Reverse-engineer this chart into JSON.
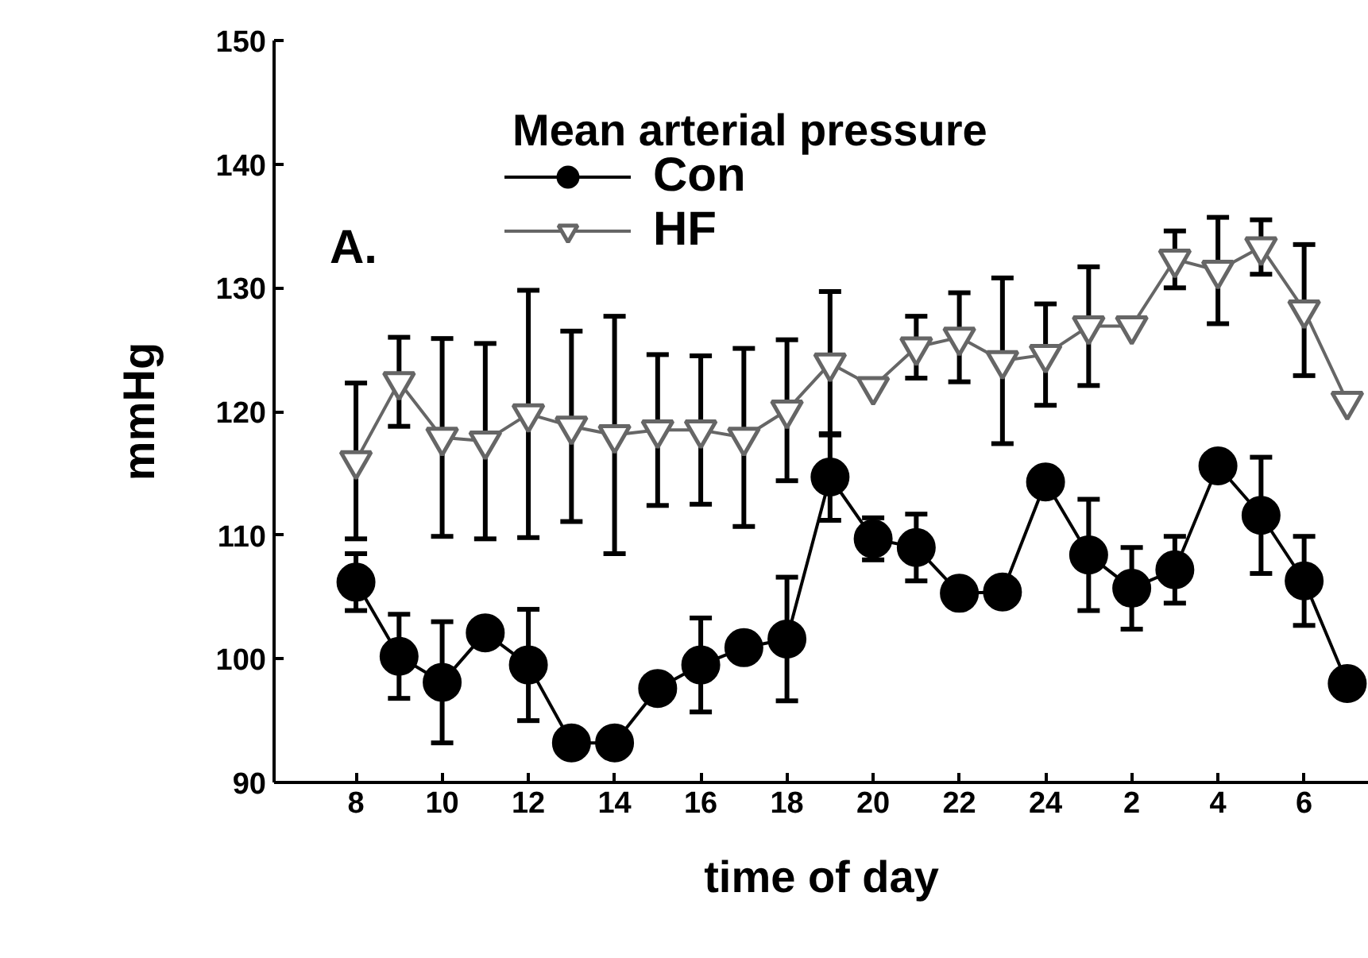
{
  "chart_data": {
    "type": "line",
    "title": "Mean arterial pressure",
    "xlabel": "time of day",
    "ylabel": "mmHg",
    "annotations": [
      "A."
    ],
    "categories": [
      "8",
      null,
      "10",
      null,
      "12",
      null,
      "14",
      null,
      "16",
      null,
      "18",
      null,
      "20",
      null,
      "22",
      null,
      "24",
      null,
      "2",
      null,
      "4",
      null,
      "6",
      null
    ],
    "ylim": [
      90,
      150
    ],
    "yticks": [
      90,
      100,
      110,
      120,
      130,
      140,
      150
    ],
    "grid": false,
    "legend": "top left",
    "line_style": "solid",
    "series": [
      {
        "name": "Con",
        "color": "#000000",
        "marker": "circle",
        "values": [
          106.2,
          100.2,
          98.1,
          102.1,
          99.5,
          93.2,
          93.2,
          97.6,
          99.5,
          100.9,
          101.6,
          114.7,
          109.7,
          109.0,
          105.3,
          105.4,
          114.3,
          108.4,
          105.7,
          107.2,
          115.6,
          111.6,
          106.3,
          98.0
        ],
        "errors": [
          2.3,
          3.4,
          4.9,
          null,
          4.5,
          null,
          null,
          null,
          3.8,
          null,
          5.0,
          3.5,
          1.7,
          2.7,
          null,
          null,
          null,
          4.5,
          3.3,
          2.7,
          null,
          4.7,
          3.6,
          null
        ]
      },
      {
        "name": "HF",
        "color": "#666666",
        "marker": "triangle",
        "values": [
          116.0,
          122.4,
          117.9,
          117.6,
          119.8,
          118.8,
          118.1,
          118.5,
          118.5,
          117.9,
          120.1,
          123.9,
          122.0,
          125.2,
          126.0,
          124.1,
          124.6,
          126.9,
          126.9,
          132.3,
          131.4,
          133.3,
          128.2,
          120.8
        ],
        "errors": [
          6.3,
          3.6,
          8.0,
          7.9,
          10.0,
          7.7,
          9.6,
          6.1,
          6.0,
          7.2,
          5.7,
          5.8,
          null,
          2.5,
          3.6,
          6.7,
          4.1,
          4.8,
          null,
          2.3,
          4.3,
          2.2,
          5.3,
          null
        ]
      }
    ]
  }
}
